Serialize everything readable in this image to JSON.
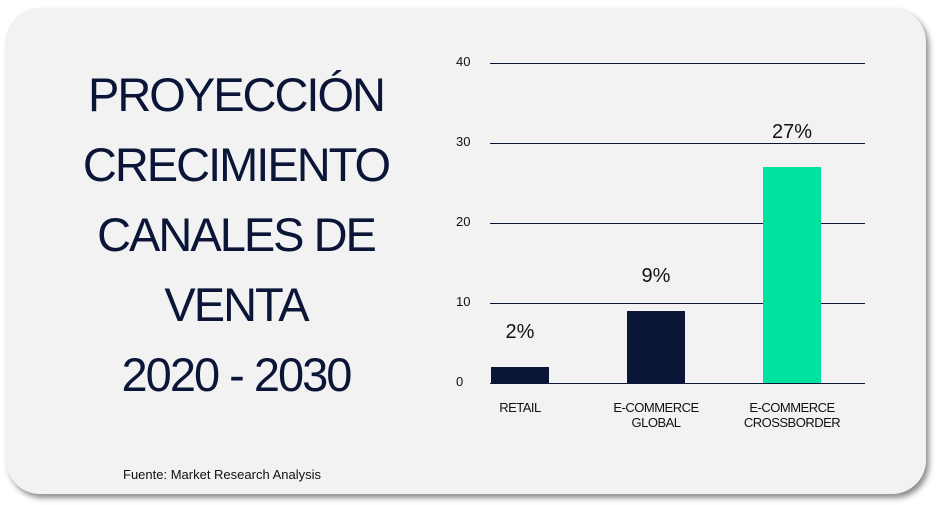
{
  "chart_data": {
    "type": "bar",
    "title": [
      "PROYECCIÓN",
      "CRECIMIENTO",
      "CANALES DE",
      "VENTA",
      "2020 - 2030"
    ],
    "categories": [
      "RETAIL",
      "E-COMMERCE GLOBAL",
      "E-COMMERCE CROSSBORDER"
    ],
    "values": [
      2,
      9,
      27
    ],
    "value_labels": [
      "2%",
      "9%",
      "27%"
    ],
    "colors": [
      "#0b1538",
      "#0b1538",
      "#00e29f"
    ],
    "ylim": [
      0,
      40
    ],
    "yticks": [
      0,
      10,
      20,
      30,
      40
    ],
    "grid": true,
    "source": "Fuente: Market Research Analysis"
  }
}
